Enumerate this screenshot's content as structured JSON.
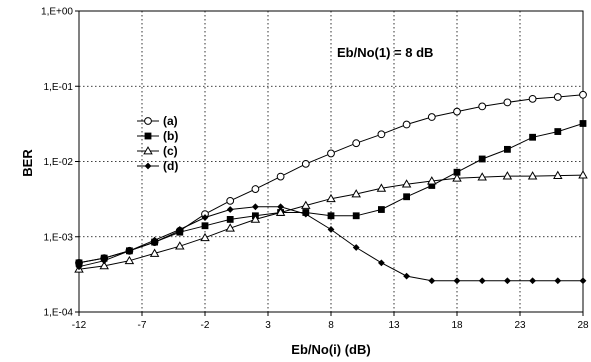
{
  "chart_data": {
    "type": "line",
    "title": "",
    "xlabel": "Eb/No(i) (dB)",
    "ylabel": "BER",
    "xlim": [
      -12,
      28
    ],
    "ylim": [
      0.0001,
      1
    ],
    "yscale": "log",
    "grid": true,
    "legend_position": "left-center",
    "x_ticks": [
      -12,
      -7,
      -2,
      3,
      8,
      13,
      18,
      23,
      28
    ],
    "x_tick_labels": [
      "-12",
      "-7",
      "-2",
      "3",
      "8",
      "13",
      "18",
      "23",
      "28"
    ],
    "y_ticks": [
      0.0001,
      0.001,
      0.01,
      0.1,
      1
    ],
    "y_tick_labels": [
      "1,E-04",
      "1,E-03",
      "1,E-02",
      "1,E-01",
      "1,E+00"
    ],
    "annotation": "Eb/No(1) = 8 dB",
    "series": [
      {
        "name": "(a)",
        "marker": "circle-open",
        "x": [
          -12,
          -10,
          -8,
          -6,
          -4,
          -2,
          0,
          2,
          4,
          6,
          8,
          10,
          12,
          14,
          16,
          18,
          20,
          22,
          24,
          26,
          28
        ],
        "y": [
          0.00045,
          0.00052,
          0.00065,
          0.00085,
          0.0012,
          0.002,
          0.003,
          0.0043,
          0.0063,
          0.0093,
          0.0128,
          0.0175,
          0.023,
          0.031,
          0.039,
          0.046,
          0.054,
          0.061,
          0.068,
          0.072,
          0.077
        ]
      },
      {
        "name": "(b)",
        "marker": "square-filled",
        "x": [
          -12,
          -10,
          -8,
          -6,
          -4,
          -2,
          0,
          2,
          4,
          6,
          8,
          10,
          12,
          14,
          16,
          18,
          20,
          22,
          24,
          26,
          28
        ],
        "y": [
          0.00045,
          0.00052,
          0.00065,
          0.00085,
          0.00115,
          0.0014,
          0.0017,
          0.0019,
          0.0021,
          0.0021,
          0.0019,
          0.0019,
          0.0023,
          0.0034,
          0.0048,
          0.0072,
          0.0108,
          0.0145,
          0.021,
          0.025,
          0.032
        ]
      },
      {
        "name": "(c)",
        "marker": "triangle-open",
        "x": [
          -12,
          -10,
          -8,
          -6,
          -4,
          -2,
          0,
          2,
          4,
          6,
          8,
          10,
          12,
          14,
          16,
          18,
          20,
          22,
          24,
          26,
          28
        ],
        "y": [
          0.00037,
          0.00041,
          0.00048,
          0.0006,
          0.00075,
          0.00097,
          0.0013,
          0.0017,
          0.0021,
          0.0026,
          0.0032,
          0.0037,
          0.0044,
          0.005,
          0.0055,
          0.006,
          0.0062,
          0.0064,
          0.0064,
          0.0065,
          0.0066
        ]
      },
      {
        "name": "(d)",
        "marker": "diamond-filled",
        "x": [
          -12,
          -10,
          -8,
          -6,
          -4,
          -2,
          0,
          2,
          4,
          6,
          8,
          10,
          12,
          14,
          16,
          18,
          20,
          22,
          24,
          26,
          28
        ],
        "y": [
          0.0004,
          0.00048,
          0.00065,
          0.0009,
          0.00125,
          0.0018,
          0.0023,
          0.0025,
          0.0025,
          0.002,
          0.00125,
          0.00072,
          0.00045,
          0.0003,
          0.00026,
          0.00026,
          0.00026,
          0.00026,
          0.00026,
          0.00026,
          0.00026
        ]
      }
    ]
  }
}
